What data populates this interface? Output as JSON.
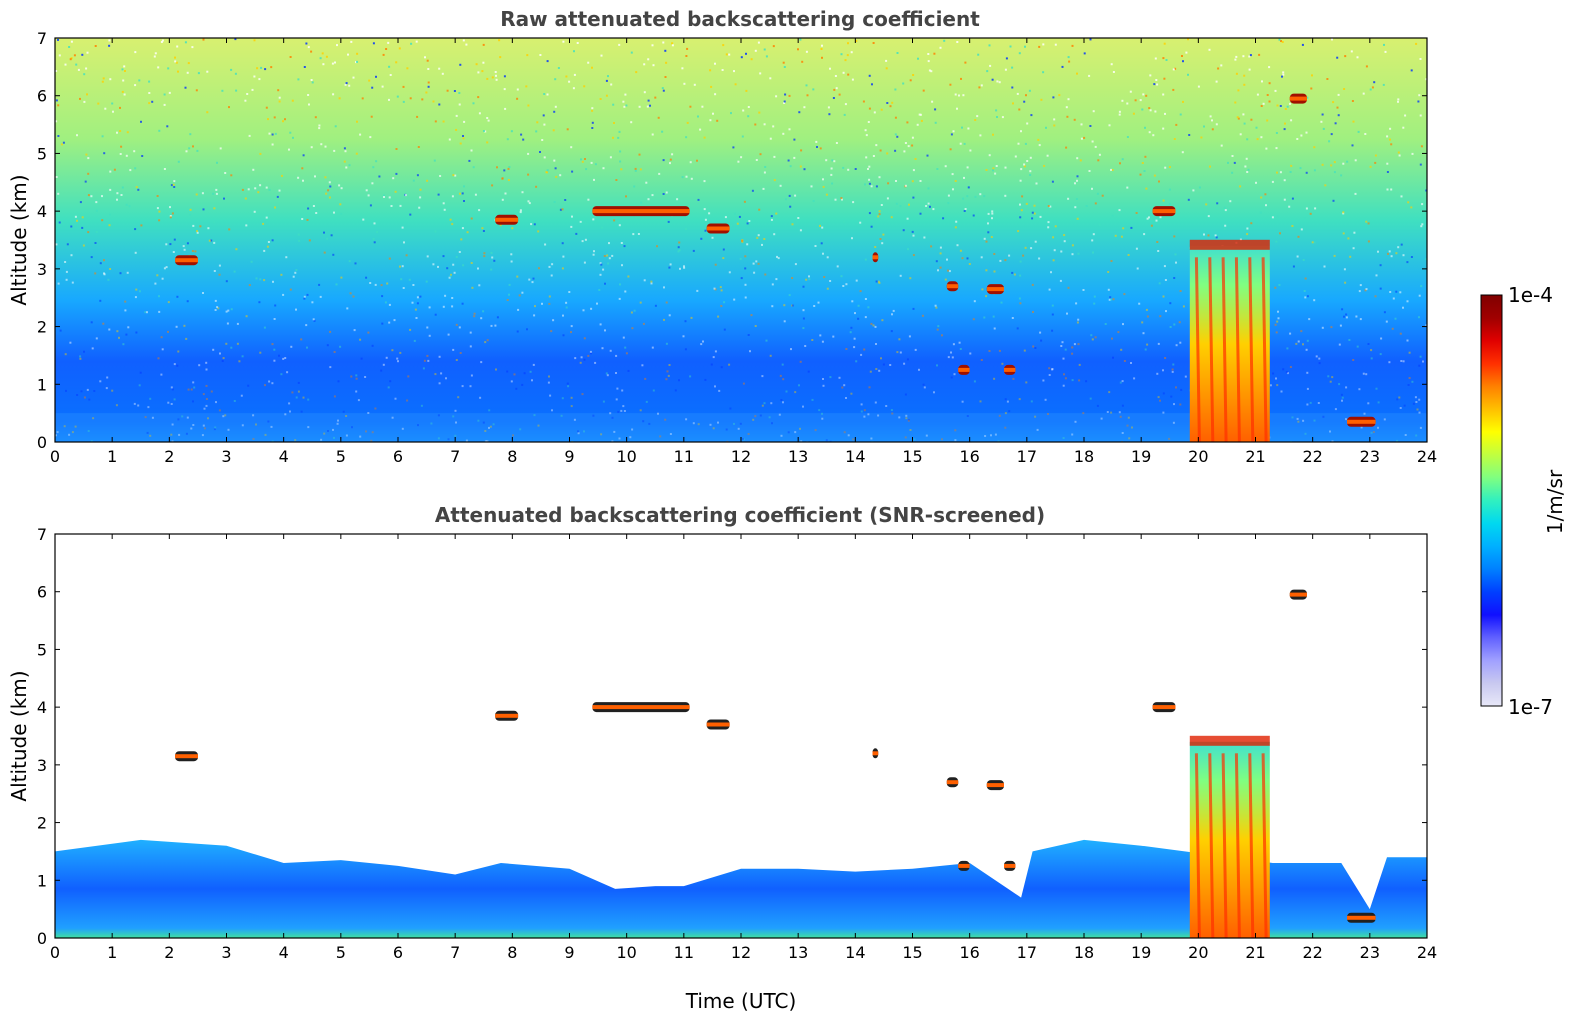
{
  "chart_data": [
    {
      "type": "heatmap",
      "title": "Raw attenuated backscattering coefficient",
      "xlabel": "",
      "ylabel": "Altitude (km)",
      "xlim": [
        0,
        24
      ],
      "ylim": [
        0,
        7
      ],
      "xticks": [
        "0",
        "1",
        "2",
        "3",
        "4",
        "5",
        "6",
        "7",
        "8",
        "9",
        "10",
        "11",
        "12",
        "13",
        "14",
        "15",
        "16",
        "17",
        "18",
        "19",
        "20",
        "21",
        "22",
        "23",
        "24"
      ],
      "yticks": [
        "0",
        "1",
        "2",
        "3",
        "4",
        "5",
        "6",
        "7"
      ],
      "colorscale": "jet",
      "features": {
        "boundary_layer_top_km": 0.5,
        "clouds": [
          {
            "time": [
              2.1,
              2.5
            ],
            "altitude_km": 3.15
          },
          {
            "time": [
              7.7,
              8.1
            ],
            "altitude_km": 3.85
          },
          {
            "time": [
              9.4,
              11.1
            ],
            "altitude_km": 4.0
          },
          {
            "time": [
              11.4,
              11.8
            ],
            "altitude_km": 3.7
          },
          {
            "time": [
              14.3,
              14.4
            ],
            "altitude_km": 3.2
          },
          {
            "time": [
              15.6,
              15.8
            ],
            "altitude_km": 2.7
          },
          {
            "time": [
              16.3,
              16.6
            ],
            "altitude_km": 2.65
          },
          {
            "time": [
              15.8,
              16.0
            ],
            "altitude_km": 1.25
          },
          {
            "time": [
              16.6,
              16.8
            ],
            "altitude_km": 1.25
          },
          {
            "time": [
              19.2,
              19.6
            ],
            "altitude_km": 4.0
          },
          {
            "time": [
              21.6,
              21.9
            ],
            "altitude_km": 5.95
          },
          {
            "time": [
              22.6,
              23.1
            ],
            "altitude_km": 0.35
          }
        ],
        "precipitation": [
          {
            "time": [
              19.85,
              21.25
            ],
            "top_km": 3.4
          }
        ]
      }
    },
    {
      "type": "heatmap",
      "title": "Attenuated backscattering coefficient (SNR-screened)",
      "xlabel": "Time (UTC)",
      "ylabel": "Altitude (km)",
      "xlim": [
        0,
        24
      ],
      "ylim": [
        0,
        7
      ],
      "xticks": [
        "0",
        "1",
        "2",
        "3",
        "4",
        "5",
        "6",
        "7",
        "8",
        "9",
        "10",
        "11",
        "12",
        "13",
        "14",
        "15",
        "16",
        "17",
        "18",
        "19",
        "20",
        "21",
        "22",
        "23",
        "24"
      ],
      "yticks": [
        "0",
        "1",
        "2",
        "3",
        "4",
        "5",
        "6",
        "7"
      ],
      "colorscale": "jet",
      "features": {
        "screened_layer_top_km": [
          [
            0,
            1.5
          ],
          [
            1.5,
            1.7
          ],
          [
            3,
            1.6
          ],
          [
            4,
            1.3
          ],
          [
            5,
            1.35
          ],
          [
            6,
            1.25
          ],
          [
            7,
            1.1
          ],
          [
            7.8,
            1.3
          ],
          [
            9,
            1.2
          ],
          [
            9.8,
            0.85
          ],
          [
            10.5,
            0.9
          ],
          [
            11,
            0.9
          ],
          [
            12,
            1.2
          ],
          [
            13,
            1.2
          ],
          [
            14,
            1.15
          ],
          [
            15,
            1.2
          ],
          [
            16,
            1.3
          ],
          [
            16.9,
            0.7
          ],
          [
            17.1,
            1.5
          ],
          [
            18,
            1.7
          ],
          [
            19,
            1.6
          ],
          [
            21.3,
            1.3
          ],
          [
            22.5,
            1.3
          ],
          [
            23,
            0.5
          ],
          [
            23.3,
            1.4
          ],
          [
            24,
            1.4
          ]
        ]
      }
    }
  ],
  "colorbar": {
    "max_label": "1e-4",
    "min_label": "1e-7",
    "unit_label": "1/m/sr",
    "colors": [
      "#e8e8f8",
      "#c8c8f0",
      "#a0a0ff",
      "#6060ff",
      "#1010ff",
      "#0040ff",
      "#0080ff",
      "#00b0ff",
      "#00d8f0",
      "#30f0c0",
      "#80ff80",
      "#c0ff40",
      "#ffff00",
      "#ffc000",
      "#ff8000",
      "#ff3000",
      "#e00000",
      "#a00000",
      "#800000"
    ]
  }
}
